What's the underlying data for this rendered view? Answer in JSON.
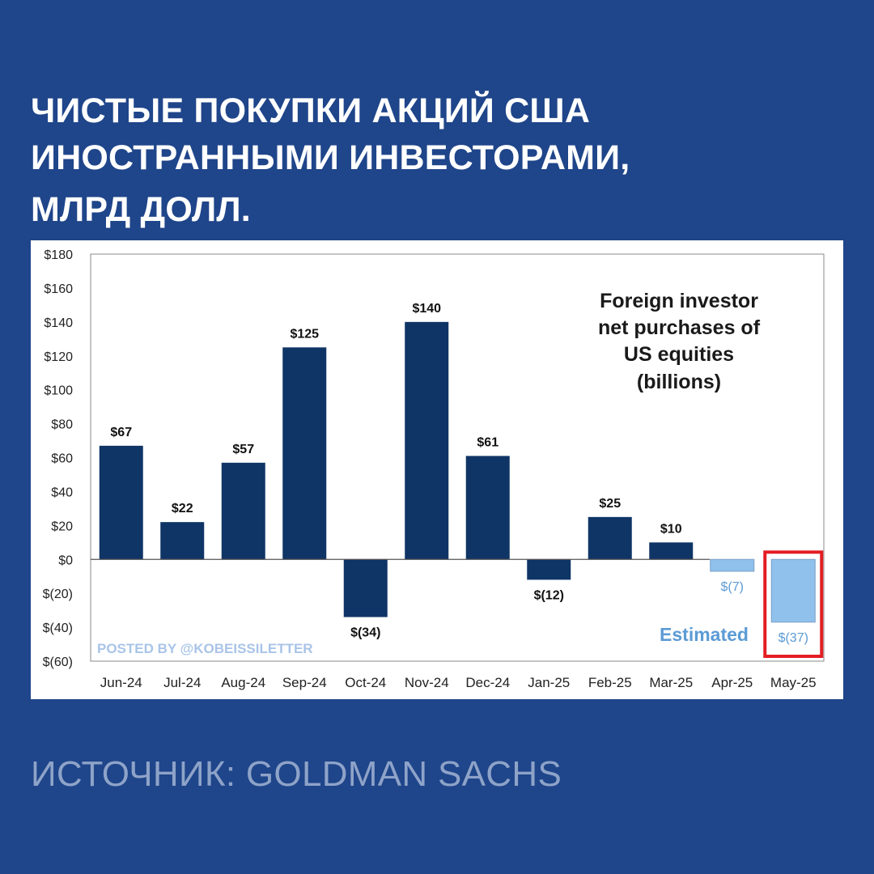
{
  "headline": {
    "line1": "ЧИСТЫЕ ПОКУПКИ АКЦИЙ США",
    "line2": "ИНОСТРАННЫМИ ИНВЕСТОРАМИ,",
    "line3": "МЛРД ДОЛЛ."
  },
  "source": "ИСТОЧНИК: GOLDMAN SACHS",
  "colors": {
    "background": "#1f458a",
    "bar_actual": "#0f3566",
    "bar_estimated": "#8fc1ec",
    "highlight_box": "#e31e24",
    "estimated_text": "#5b9bd5"
  },
  "chart_data": {
    "type": "bar",
    "title_lines": [
      "Foreign investor",
      "net purchases of",
      "US equities",
      "(billions)"
    ],
    "categories": [
      "Jun-24",
      "Jul-24",
      "Aug-24",
      "Sep-24",
      "Oct-24",
      "Nov-24",
      "Dec-24",
      "Jan-25",
      "Feb-25",
      "Mar-25",
      "Apr-25",
      "May-25"
    ],
    "values": [
      67,
      22,
      57,
      125,
      -34,
      140,
      61,
      -12,
      25,
      10,
      -7,
      -37
    ],
    "value_labels": [
      "$67",
      "$22",
      "$57",
      "$125",
      "$(34)",
      "$140",
      "$61",
      "$(12)",
      "$25",
      "$10",
      "$(7)",
      "$(37)"
    ],
    "estimated": [
      false,
      false,
      false,
      false,
      false,
      false,
      false,
      false,
      false,
      false,
      true,
      true
    ],
    "highlighted_category": "May-25",
    "ylim": [
      -60,
      180
    ],
    "yticks": [
      180,
      160,
      140,
      120,
      100,
      80,
      60,
      40,
      20,
      0,
      -20,
      -40,
      -60
    ],
    "ytick_labels": [
      "$180",
      "$160",
      "$140",
      "$120",
      "$100",
      "$80",
      "$60",
      "$40",
      "$20",
      "$0",
      "$(20)",
      "$(40)",
      "$(60)"
    ],
    "estimated_label": "Estimated",
    "watermark": "POSTED BY @KOBEISSILETTER",
    "grid": false,
    "xlabel": "",
    "ylabel": ""
  }
}
